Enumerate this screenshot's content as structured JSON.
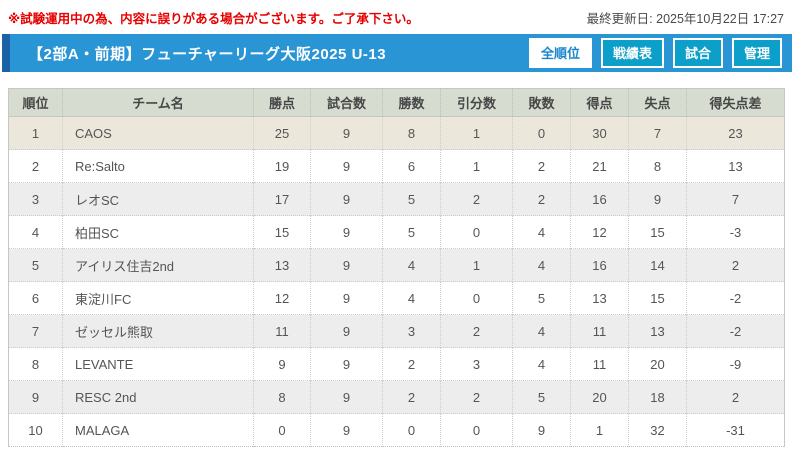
{
  "notice": {
    "warning": "※試験運用中の為、内容に誤りがある場合がございます。ご了承下さい。",
    "last_updated": "最終更新日: 2025年10月22日 17:27"
  },
  "header": {
    "title": "【2部A・前期】フューチャーリーグ大阪2025 U-13",
    "tabs": [
      {
        "label": "全順位",
        "active": true
      },
      {
        "label": "戦績表",
        "active": false
      },
      {
        "label": "試合",
        "active": false
      },
      {
        "label": "管理",
        "active": false
      }
    ]
  },
  "standings": {
    "columns": [
      "順位",
      "チーム名",
      "勝点",
      "試合数",
      "勝数",
      "引分数",
      "敗数",
      "得点",
      "失点",
      "得失点差"
    ],
    "highlighted_ranks": [
      1
    ],
    "rows": [
      [
        "1",
        "CAOS",
        "25",
        "9",
        "8",
        "1",
        "0",
        "30",
        "7",
        "23"
      ],
      [
        "2",
        "Re:Salto",
        "19",
        "9",
        "6",
        "1",
        "2",
        "21",
        "8",
        "13"
      ],
      [
        "3",
        "レオSC",
        "17",
        "9",
        "5",
        "2",
        "2",
        "16",
        "9",
        "7"
      ],
      [
        "4",
        "柏田SC",
        "15",
        "9",
        "5",
        "0",
        "4",
        "12",
        "15",
        "-3"
      ],
      [
        "5",
        "アイリス住吉2nd",
        "13",
        "9",
        "4",
        "1",
        "4",
        "16",
        "14",
        "2"
      ],
      [
        "6",
        "東淀川FC",
        "12",
        "9",
        "4",
        "0",
        "5",
        "13",
        "15",
        "-2"
      ],
      [
        "7",
        "ゼッセル熊取",
        "11",
        "9",
        "3",
        "2",
        "4",
        "11",
        "13",
        "-2"
      ],
      [
        "8",
        "LEVANTE",
        "9",
        "9",
        "2",
        "3",
        "4",
        "11",
        "20",
        "-9"
      ],
      [
        "9",
        "RESC 2nd",
        "8",
        "9",
        "2",
        "2",
        "5",
        "20",
        "18",
        "2"
      ],
      [
        "10",
        "MALAGA",
        "0",
        "9",
        "0",
        "0",
        "9",
        "1",
        "32",
        "-31"
      ]
    ]
  },
  "colors": {
    "notice_red": "#e60000",
    "bar_blue": "#2a95d5",
    "bar_accent_blue": "#1a61a6",
    "tab_fill_blue": "#0c9fc9",
    "active_tab_text": "#1886cd",
    "header_row_bg": "#d6ddd0",
    "first_place_bg": "#ebe7da",
    "stripe_gray": "#ededed"
  }
}
